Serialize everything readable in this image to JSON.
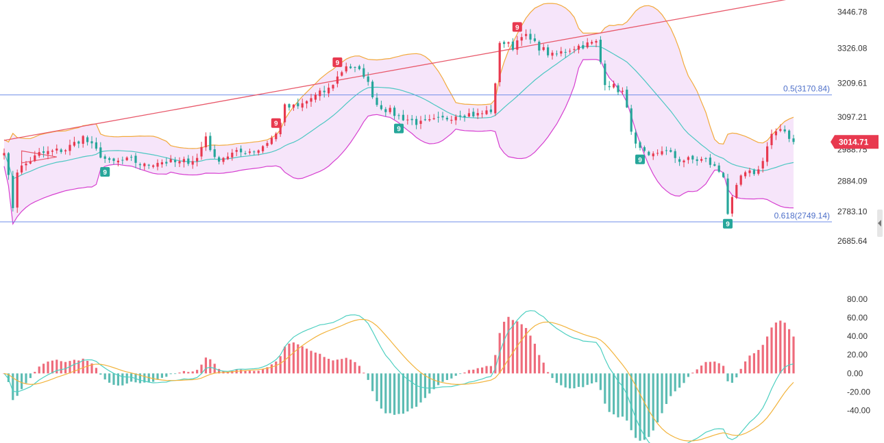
{
  "chart_data": [
    {
      "type": "candlestick",
      "panel": "price",
      "y_ticks": [
        "3446.78",
        "3326.08",
        "3209.61",
        "3097.21",
        "2988.75",
        "2884.09",
        "2783.10",
        "2685.64"
      ],
      "ylim": [
        2640,
        3475
      ],
      "grid": false,
      "last_price": "3014.71",
      "fib_levels": [
        {
          "label": "0.5(3170.84)",
          "value": 3170.84
        },
        {
          "label": "0.618(2749.14)",
          "value": 2749.14
        }
      ],
      "trendline": {
        "from": {
          "bar": 0,
          "value": 3020
        },
        "to": {
          "bar": 181,
          "value": 3495
        }
      },
      "triangle": [
        {
          "bar": 4,
          "value": 2985
        },
        {
          "bar": 12,
          "value": 2965
        },
        {
          "bar": 4,
          "value": 2945
        }
      ],
      "td_markers": [
        {
          "bar": 23,
          "text": "9",
          "side": "low"
        },
        {
          "bar": 62,
          "text": "9",
          "side": "high"
        },
        {
          "bar": 76,
          "text": "9",
          "side": "high"
        },
        {
          "bar": 90,
          "text": "9",
          "side": "low"
        },
        {
          "bar": 117,
          "text": "9",
          "side": "high"
        },
        {
          "bar": 145,
          "text": "9",
          "side": "low"
        },
        {
          "bar": 165,
          "text": "9",
          "side": "low"
        }
      ],
      "anchors": [
        [
          0,
          2990
        ],
        [
          2,
          2800
        ],
        [
          3,
          2920
        ],
        [
          8,
          2975
        ],
        [
          14,
          2990
        ],
        [
          18,
          3030
        ],
        [
          21,
          2985
        ],
        [
          24,
          2945
        ],
        [
          29,
          2955
        ],
        [
          32,
          2935
        ],
        [
          35,
          2950
        ],
        [
          40,
          2945
        ],
        [
          44,
          2960
        ],
        [
          46,
          3035
        ],
        [
          48,
          2955
        ],
        [
          52,
          2975
        ],
        [
          58,
          2990
        ],
        [
          62,
          3040
        ],
        [
          64,
          3130
        ],
        [
          67,
          3130
        ],
        [
          70,
          3160
        ],
        [
          74,
          3190
        ],
        [
          78,
          3270
        ],
        [
          82,
          3240
        ],
        [
          85,
          3140
        ],
        [
          90,
          3100
        ],
        [
          95,
          3075
        ],
        [
          100,
          3090
        ],
        [
          104,
          3110
        ],
        [
          108,
          3105
        ],
        [
          111,
          3120
        ],
        [
          112,
          3200
        ],
        [
          113,
          3350
        ],
        [
          116,
          3330
        ],
        [
          118,
          3375
        ],
        [
          121,
          3340
        ],
        [
          125,
          3300
        ],
        [
          130,
          3330
        ],
        [
          135,
          3345
        ],
        [
          137,
          3215
        ],
        [
          141,
          3180
        ],
        [
          144,
          3000
        ],
        [
          147,
          2960
        ],
        [
          150,
          2990
        ],
        [
          154,
          2955
        ],
        [
          160,
          2955
        ],
        [
          164,
          2905
        ],
        [
          165,
          2780
        ],
        [
          168,
          2900
        ],
        [
          172,
          2920
        ],
        [
          175,
          3040
        ],
        [
          178,
          3050
        ],
        [
          180,
          3014.71
        ]
      ],
      "macd": {
        "ylim": [
          -55,
          85
        ],
        "y_ticks": [
          "80.00",
          "60.00",
          "40.00",
          "20.00",
          "0.00",
          "-20.00",
          "-40.00"
        ]
      }
    }
  ]
}
